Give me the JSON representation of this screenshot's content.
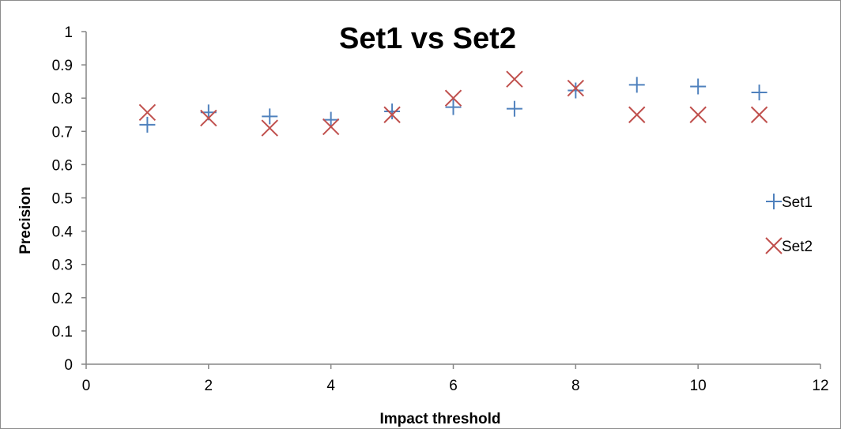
{
  "chart_data": {
    "type": "scatter",
    "title": "Set1 vs Set2",
    "xlabel": "Impact threshold",
    "ylabel": "Precision",
    "xlim": [
      0,
      12
    ],
    "ylim": [
      0,
      1
    ],
    "x_ticks": [
      "0",
      "2",
      "4",
      "6",
      "8",
      "10",
      "12"
    ],
    "y_ticks": [
      "0",
      "0.1",
      "0.2",
      "0.3",
      "0.4",
      "0.5",
      "0.6",
      "0.7",
      "0.8",
      "0.9",
      "1"
    ],
    "grid": false,
    "legend_position": "right",
    "series": [
      {
        "name": "Set1",
        "marker": "plus",
        "color": "#4f81bd",
        "x": [
          1,
          2,
          3,
          4,
          5,
          6,
          7,
          8,
          9,
          10,
          11
        ],
        "y": [
          0.72,
          0.757,
          0.745,
          0.735,
          0.76,
          0.773,
          0.768,
          0.823,
          0.84,
          0.835,
          0.817
        ]
      },
      {
        "name": "Set2",
        "marker": "x",
        "color": "#c0504d",
        "x": [
          1,
          2,
          3,
          4,
          5,
          6,
          7,
          8,
          9,
          10,
          11
        ],
        "y": [
          0.757,
          0.74,
          0.71,
          0.714,
          0.75,
          0.8,
          0.857,
          0.83,
          0.75,
          0.75,
          0.75
        ]
      }
    ]
  }
}
